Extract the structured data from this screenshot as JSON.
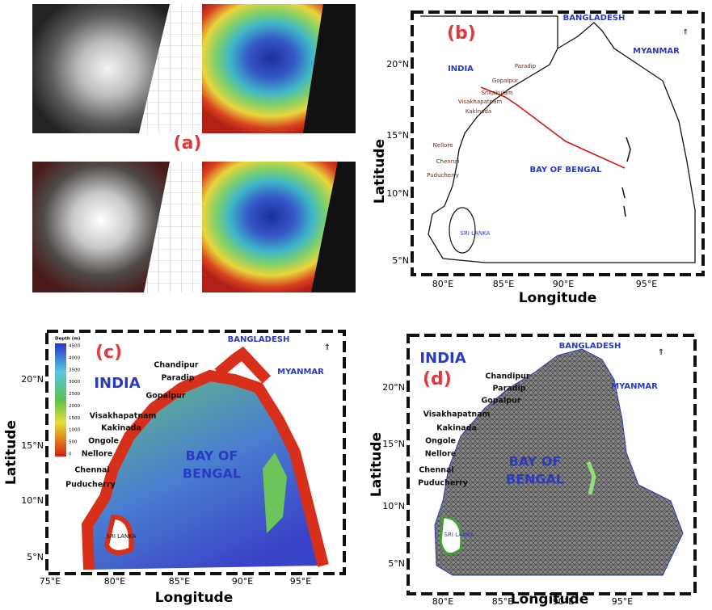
{
  "panel_a": {
    "label": "(a)"
  },
  "panel_b": {
    "label": "(b)",
    "places": [
      "BANGLADESH",
      "MYANMAR",
      "INDIA",
      "Paradip",
      "Gopalpur",
      "Srikakulam",
      "Visakhapatnam",
      "Kakinada",
      "Nellore",
      "Chennai",
      "Puducherry",
      "BAY OF BENGAL",
      "SRI LANKA"
    ],
    "x_ticks": [
      "80°E",
      "85°E",
      "90°E",
      "95°E"
    ],
    "y_ticks": [
      "20°N",
      "15°N",
      "10°N",
      "5°N"
    ],
    "x_label": "Longitude",
    "y_label": "Latitude"
  },
  "panel_c": {
    "label": "(c)",
    "legend_title": "Depth (m)",
    "legend_values": [
      4500,
      4000,
      3500,
      3000,
      2500,
      2000,
      1500,
      1000,
      500,
      0
    ],
    "places": [
      "BANGLADESH",
      "MYANMAR",
      "INDIA",
      "Chandipur",
      "Paradip",
      "Gopalpur",
      "Visakhapatnam",
      "Kakinada",
      "Ongole",
      "Nellore",
      "Chennai",
      "Puducherry",
      "BAY OF",
      "BENGAL",
      "SRI LANKA"
    ],
    "x_ticks": [
      "75°E",
      "80°E",
      "85°E",
      "90°E",
      "95°E"
    ],
    "y_ticks": [
      "20°N",
      "15°N",
      "10°N",
      "5°N"
    ],
    "x_label": "Longitude",
    "y_label": "Latitude"
  },
  "panel_d": {
    "label": "(d)",
    "places": [
      "INDIA",
      "BANGLADESH",
      "MYANMAR",
      "Chandipur",
      "Paradip",
      "Gopalpur",
      "Visakhapatnam",
      "Kakinada",
      "Ongole",
      "Nellore",
      "Chennai",
      "Puducherry",
      "BAY OF",
      "BENGAL",
      "SRI LANKA"
    ],
    "x_ticks": [
      "80°E",
      "85°E",
      "90°E",
      "95°E"
    ],
    "y_ticks": [
      "20°N",
      "15°N",
      "10°N",
      "5°N"
    ],
    "x_label": "Longitude",
    "y_label": "Latitude"
  }
}
